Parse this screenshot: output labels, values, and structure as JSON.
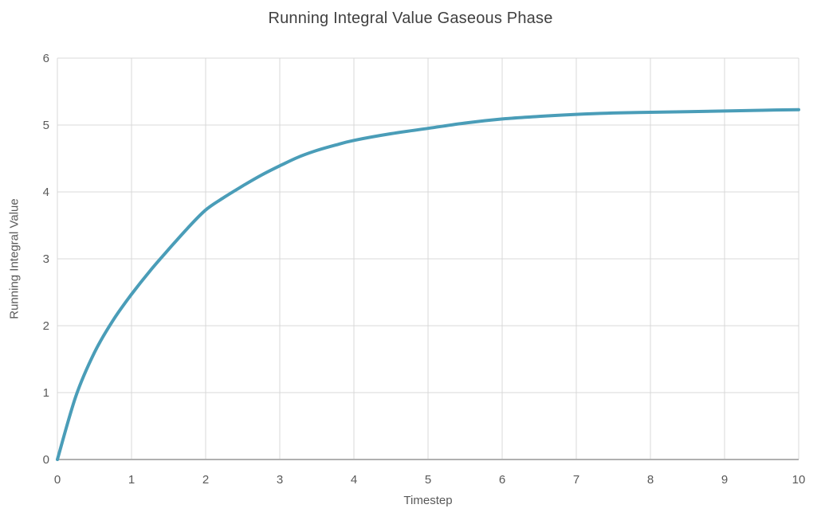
{
  "chart_data": {
    "type": "line",
    "title": "Running Integral Value Gaseous Phase",
    "xlabel": "Timestep",
    "ylabel": "Running Integral Value",
    "xlim": [
      0,
      10
    ],
    "ylim": [
      0,
      6
    ],
    "x_ticks": [
      0,
      1,
      2,
      3,
      4,
      5,
      6,
      7,
      8,
      9,
      10
    ],
    "y_ticks": [
      0,
      1,
      2,
      3,
      4,
      5,
      6
    ],
    "grid": true,
    "legend": false,
    "series": [
      {
        "name": "Running Integral Value",
        "color": "#4A9DB8",
        "x": [
          0,
          0.25,
          0.5,
          0.75,
          1,
          1.25,
          1.5,
          1.75,
          2,
          2.25,
          2.5,
          2.75,
          3,
          3.25,
          3.5,
          3.75,
          4,
          4.5,
          5,
          5.5,
          6,
          6.5,
          7,
          7.5,
          8,
          8.5,
          9,
          9.5,
          10
        ],
        "y": [
          0,
          0.95,
          1.6,
          2.08,
          2.47,
          2.82,
          3.14,
          3.45,
          3.73,
          3.92,
          4.09,
          4.25,
          4.39,
          4.52,
          4.62,
          4.7,
          4.77,
          4.87,
          4.95,
          5.03,
          5.09,
          5.13,
          5.16,
          5.18,
          5.19,
          5.2,
          5.21,
          5.22,
          5.23
        ]
      }
    ],
    "notable_values": {
      "start": {
        "x": 0,
        "y": 0
      },
      "end": {
        "x": 10,
        "y": 5.23
      },
      "approx_asymptote": 5.25
    }
  },
  "colors": {
    "background": "#FFFFFF",
    "line": "#4A9DB8",
    "gridline": "#D9D9D9",
    "axis_line": "#B0B0B0",
    "title_text": "#404040",
    "label_text": "#595959"
  }
}
